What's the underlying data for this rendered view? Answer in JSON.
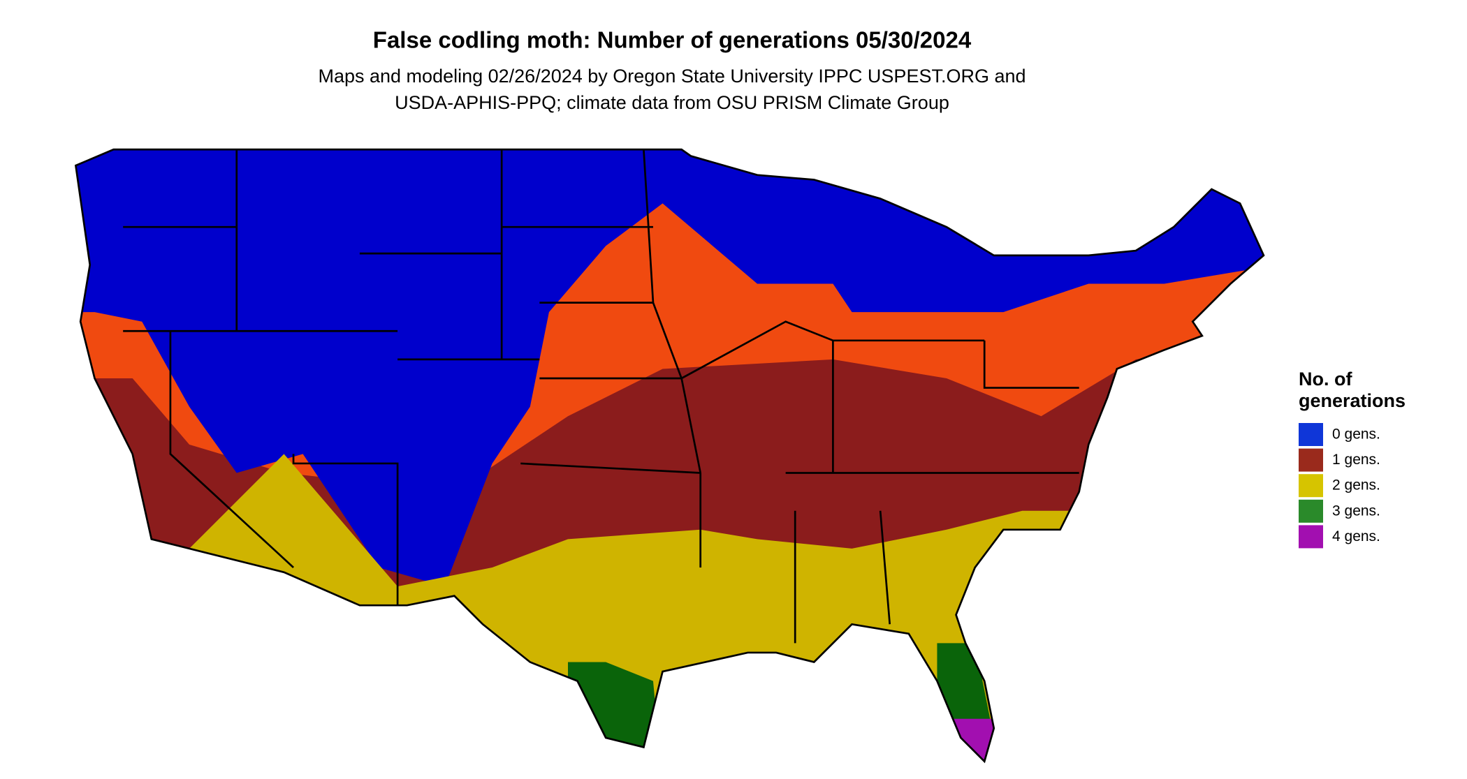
{
  "header": {
    "title": "False codling moth: Number of generations 05/30/2024",
    "subtitle_lines": [
      "Maps and modeling 02/26/2024 by Oregon State University IPPC USPEST.ORG and",
      "USDA-APHIS-PPQ; climate data from OSU PRISM Climate Group"
    ]
  },
  "legend": {
    "title_lines": [
      "No. of",
      "generations"
    ],
    "items": [
      {
        "label": "0 gens.",
        "color": "#0f36d8"
      },
      {
        "label": "1 gens.",
        "color": "#9a2a1c"
      },
      {
        "label": "2 gens.",
        "color": "#d6c400"
      },
      {
        "label": "3 gens.",
        "color": "#2a8a2a"
      },
      {
        "label": "4 gens.",
        "color": "#a20fb0"
      }
    ]
  }
}
